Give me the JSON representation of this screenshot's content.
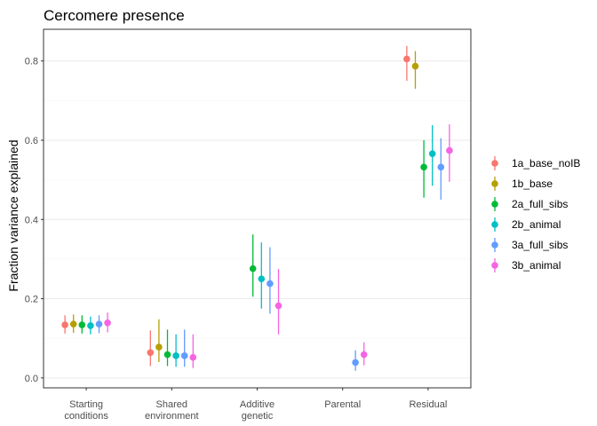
{
  "chart_data": {
    "type": "scatter",
    "subtype": "point-range",
    "title": "Cercomere presence",
    "xlabel": "",
    "ylabel": "Fraction variance explained",
    "ylim": [
      -0.025,
      0.88
    ],
    "yticks": [
      "0.0",
      "0.2",
      "0.4",
      "0.6",
      "0.8"
    ],
    "grid": true,
    "legend_position": "right",
    "categories": [
      "Starting\nconditions",
      "Shared\nenvironment",
      "Additive\ngenetic",
      "Parental",
      "Residual"
    ],
    "series": [
      {
        "name": "1a_base_noIB",
        "color": "#F8766D",
        "values": [
          0.134,
          0.064,
          null,
          null,
          0.805
        ],
        "lower": [
          0.112,
          0.03,
          null,
          null,
          0.75
        ],
        "upper": [
          0.158,
          0.12,
          null,
          null,
          0.838
        ]
      },
      {
        "name": "1b_base",
        "color": "#B79F00",
        "values": [
          0.136,
          0.078,
          null,
          null,
          0.787
        ],
        "lower": [
          0.114,
          0.04,
          null,
          null,
          0.73
        ],
        "upper": [
          0.16,
          0.148,
          null,
          null,
          0.825
        ]
      },
      {
        "name": "2a_full_sibs",
        "color": "#00BA38",
        "values": [
          0.134,
          0.059,
          0.276,
          null,
          0.532
        ],
        "lower": [
          0.112,
          0.03,
          0.205,
          null,
          0.455
        ],
        "upper": [
          0.158,
          0.122,
          0.362,
          null,
          0.6
        ]
      },
      {
        "name": "2b_animal",
        "color": "#00BFC4",
        "values": [
          0.132,
          0.056,
          0.25,
          null,
          0.566
        ],
        "lower": [
          0.11,
          0.028,
          0.175,
          null,
          0.485
        ],
        "upper": [
          0.155,
          0.11,
          0.342,
          null,
          0.638
        ]
      },
      {
        "name": "3a_full_sibs",
        "color": "#619CFF",
        "values": [
          0.136,
          0.056,
          0.238,
          0.039,
          0.532
        ],
        "lower": [
          0.113,
          0.028,
          0.162,
          0.018,
          0.45
        ],
        "upper": [
          0.158,
          0.122,
          0.33,
          0.07,
          0.605
        ]
      },
      {
        "name": "3b_animal",
        "color": "#F564E3",
        "values": [
          0.139,
          0.052,
          0.182,
          0.059,
          0.574
        ],
        "lower": [
          0.115,
          0.025,
          0.11,
          0.032,
          0.495
        ],
        "upper": [
          0.165,
          0.11,
          0.275,
          0.09,
          0.64
        ]
      }
    ]
  },
  "colors": {
    "panel_border": "#333333",
    "grid": "#ebebeb",
    "tick": "#333333"
  }
}
